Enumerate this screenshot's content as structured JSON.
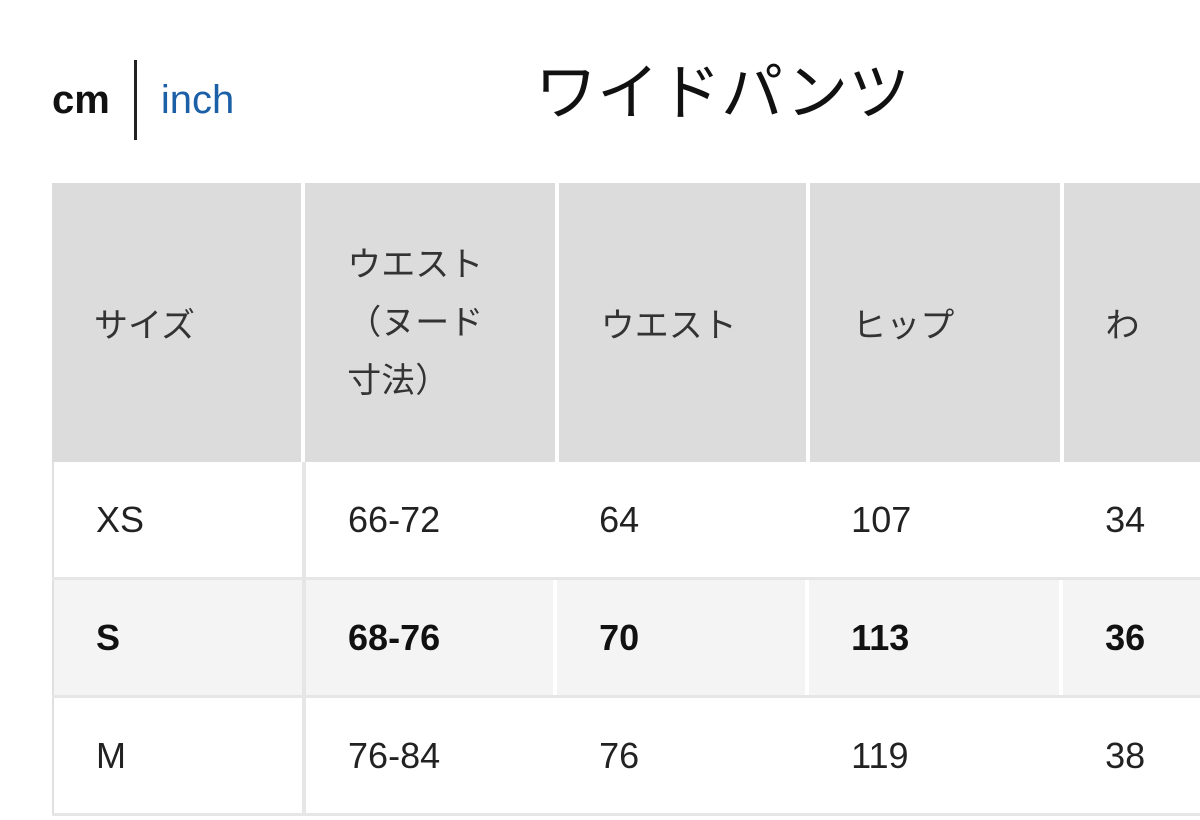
{
  "units": {
    "active": "cm",
    "other": "inch"
  },
  "title": "ワイドパンツ",
  "table": {
    "headers": [
      "サイズ",
      "ウエスト（ヌード寸法）",
      "ウエスト",
      "ヒップ",
      "わ"
    ],
    "rows": [
      {
        "cells": [
          "XS",
          "66-72",
          "64",
          "107",
          "34"
        ],
        "highlighted": false
      },
      {
        "cells": [
          "S",
          "68-76",
          "70",
          "113",
          "36"
        ],
        "highlighted": true
      },
      {
        "cells": [
          "M",
          "76-84",
          "76",
          "119",
          "38"
        ],
        "highlighted": false
      }
    ]
  },
  "colors": {
    "link": "#1b5fa6",
    "header_bg": "#dcdcdc",
    "highlight_row_bg": "#f4f4f4"
  }
}
